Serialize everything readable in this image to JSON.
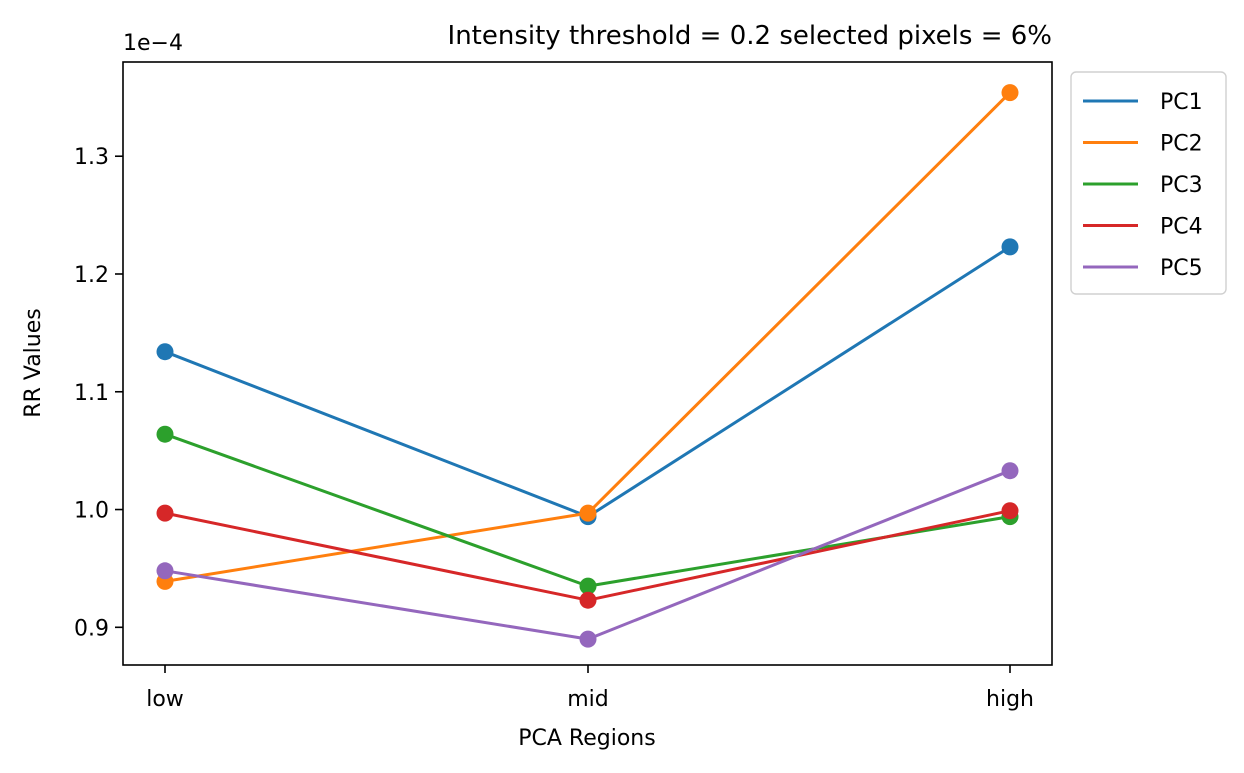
{
  "chart_data": {
    "type": "line",
    "title": "Intensity threshold = 0.2 selected pixels = 6%",
    "xlabel": "PCA Regions",
    "ylabel": "RR Values",
    "y_offset_label": "1e−4",
    "categories": [
      "low",
      "mid",
      "high"
    ],
    "y_ticks": [
      0.9,
      1.0,
      1.1,
      1.2,
      1.3
    ],
    "y_tick_labels": [
      "0.9",
      "1.0",
      "1.1",
      "1.2",
      "1.3"
    ],
    "ylim": [
      0.868,
      1.38
    ],
    "y_unit_multiplier": 0.0001,
    "legend_position": "outside-upper-right",
    "grid": false,
    "series": [
      {
        "name": "PC1",
        "color": "#1f77b4",
        "values": [
          1.134,
          0.994,
          1.223
        ]
      },
      {
        "name": "PC2",
        "color": "#ff7f0e",
        "values": [
          0.939,
          0.997,
          1.354
        ]
      },
      {
        "name": "PC3",
        "color": "#2ca02c",
        "values": [
          1.064,
          0.935,
          0.994
        ]
      },
      {
        "name": "PC4",
        "color": "#d62728",
        "values": [
          0.997,
          0.923,
          0.999
        ]
      },
      {
        "name": "PC5",
        "color": "#9467bd",
        "values": [
          0.948,
          0.89,
          1.033
        ]
      }
    ]
  }
}
